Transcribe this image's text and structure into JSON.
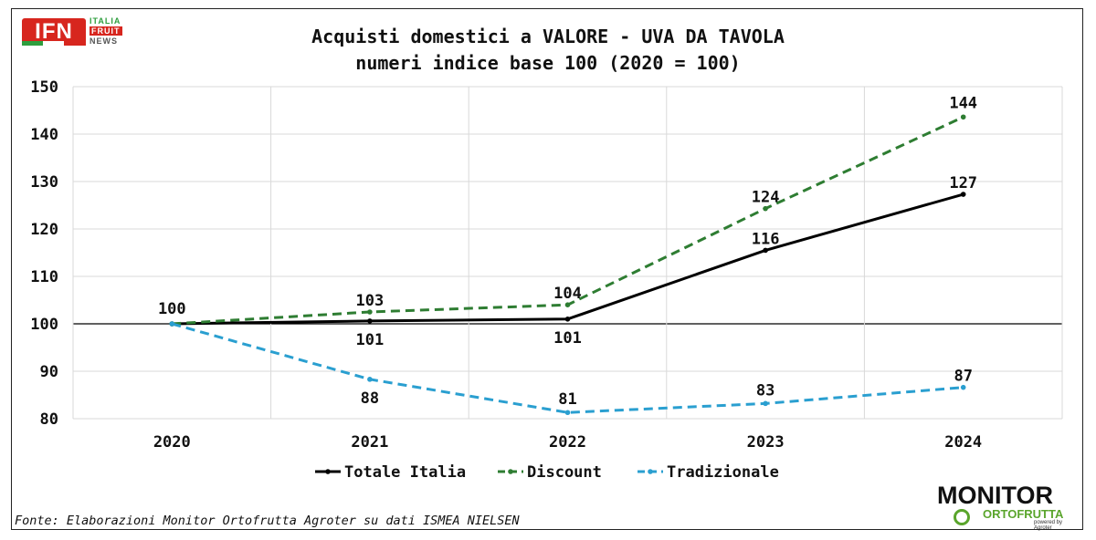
{
  "header": {
    "title_line1": "Acquisti domestici a VALORE - UVA DA TAVOLA",
    "title_line2": "numeri indice base 100 (2020 = 100)"
  },
  "logos": {
    "ifn_badge": "IFN",
    "ifn_line1": "ITALIA",
    "ifn_line2": "FRUIT",
    "ifn_line3": "NEWS",
    "monitor_line1": "MONITOR",
    "monitor_line2": "ORTOFRUTTA",
    "monitor_line3": "powered by Agroter"
  },
  "footer": {
    "source": "Fonte: Elaborazioni Monitor Ortofrutta Agroter su dati ISMEA NIELSEN"
  },
  "chart_data": {
    "type": "line",
    "title": "Acquisti domestici a VALORE - UVA DA TAVOLA",
    "subtitle": "numeri indice base 100 (2020 = 100)",
    "categories": [
      "2020",
      "2021",
      "2022",
      "2023",
      "2024"
    ],
    "ylim": [
      80,
      150
    ],
    "yticks": [
      80,
      90,
      100,
      110,
      120,
      130,
      140,
      150
    ],
    "reference_line": 100,
    "grid": true,
    "legend_position": "bottom",
    "series": [
      {
        "name": "Totale Italia",
        "values": [
          100,
          100.6,
          101,
          115.5,
          127.3
        ],
        "labels": [
          "",
          "101",
          "101",
          "116",
          "127"
        ],
        "color": "#000000",
        "style": "solid"
      },
      {
        "name": "Discount",
        "values": [
          100,
          102.5,
          104,
          124.3,
          143.6
        ],
        "labels": [
          "100",
          "103",
          "104",
          "124",
          "144"
        ],
        "color": "#2e7d32",
        "style": "dashed"
      },
      {
        "name": "Tradizionale",
        "values": [
          100,
          88.3,
          81.3,
          83.2,
          86.6
        ],
        "labels": [
          "",
          "88",
          "81",
          "83",
          "87"
        ],
        "color": "#2a9fd0",
        "style": "dashed"
      }
    ]
  }
}
